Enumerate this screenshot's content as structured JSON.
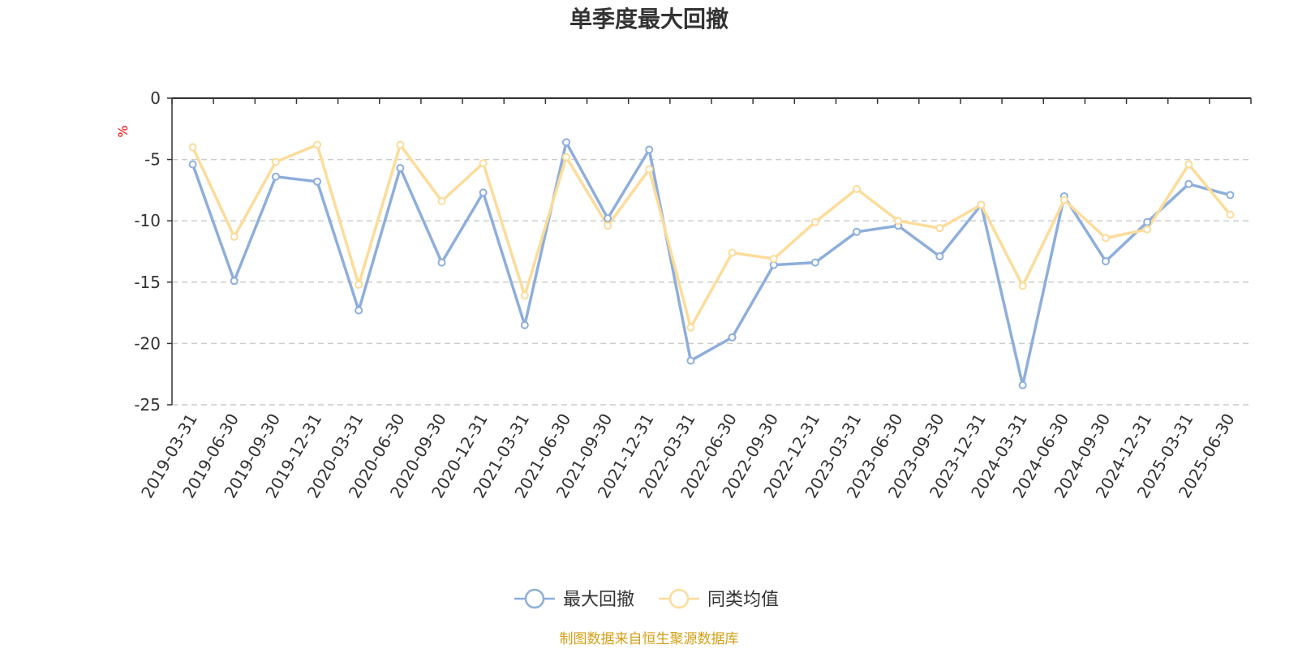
{
  "chart_data": {
    "type": "line",
    "title": "单季度最大回撤",
    "ylabel": "%",
    "ylim": [
      -25,
      0
    ],
    "yticks": [
      0,
      -5,
      -10,
      -15,
      -20,
      -25
    ],
    "grid": true,
    "legend_position": "bottom-center",
    "categories": [
      "2019-03-31",
      "2019-06-30",
      "2019-09-30",
      "2019-12-31",
      "2020-03-31",
      "2020-06-30",
      "2020-09-30",
      "2020-12-31",
      "2021-03-31",
      "2021-06-30",
      "2021-09-30",
      "2021-12-31",
      "2022-03-31",
      "2022-06-30",
      "2022-09-30",
      "2022-12-31",
      "2023-03-31",
      "2023-06-30",
      "2023-09-30",
      "2023-12-31",
      "2024-03-31",
      "2024-06-30",
      "2024-09-30",
      "2024-12-31",
      "2025-03-31",
      "2025-06-30"
    ],
    "series": [
      {
        "name": "最大回撤",
        "color": "#8eaedb",
        "values": [
          -5.4,
          -14.9,
          -6.4,
          -6.8,
          -17.3,
          -5.7,
          -13.4,
          -7.7,
          -18.5,
          -3.6,
          -9.8,
          -4.2,
          -21.4,
          -19.5,
          -13.6,
          -13.4,
          -10.9,
          -10.4,
          -12.9,
          -8.7,
          -23.4,
          -8.0,
          -13.3,
          -10.1,
          -7.0,
          -7.9
        ]
      },
      {
        "name": "同类均值",
        "color": "#fcdc9a",
        "values": [
          -4.0,
          -11.3,
          -5.2,
          -3.8,
          -15.2,
          -3.8,
          -8.4,
          -5.3,
          -16.1,
          -4.8,
          -10.4,
          -5.8,
          -18.7,
          -12.6,
          -13.1,
          -10.1,
          -7.4,
          -10.0,
          -10.6,
          -8.7,
          -15.3,
          -8.3,
          -11.4,
          -10.7,
          -5.4,
          -9.5
        ]
      }
    ]
  },
  "source_note": "制图数据来自恒生聚源数据库",
  "colors": {
    "axis": "#333333",
    "grid": "#cccccc",
    "unit": "#ff0000",
    "source": "#d4a017"
  }
}
